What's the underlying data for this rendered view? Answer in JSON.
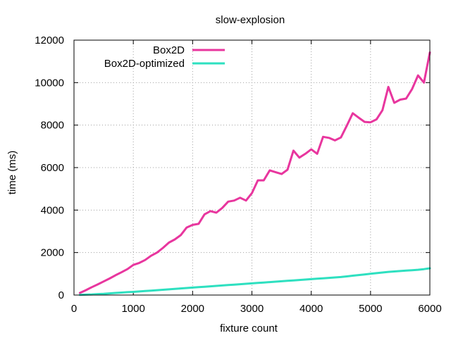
{
  "chart_data": {
    "type": "line",
    "title": "slow-explosion",
    "xlabel": "fixture count",
    "ylabel": "time (ms)",
    "xlim": [
      0,
      6000
    ],
    "ylim": [
      0,
      12000
    ],
    "xticks": [
      0,
      1000,
      2000,
      3000,
      4000,
      5000,
      6000
    ],
    "yticks": [
      0,
      2000,
      4000,
      6000,
      8000,
      10000,
      12000
    ],
    "grid": true,
    "legend_position": "top-left",
    "series": [
      {
        "name": "Box2D",
        "color": "#e8369e",
        "x": [
          100,
          200,
          300,
          400,
          500,
          600,
          700,
          800,
          900,
          1000,
          1100,
          1200,
          1300,
          1400,
          1500,
          1600,
          1700,
          1800,
          1900,
          2000,
          2100,
          2200,
          2300,
          2400,
          2500,
          2600,
          2700,
          2800,
          2900,
          3000,
          3100,
          3200,
          3300,
          3400,
          3500,
          3600,
          3700,
          3800,
          3900,
          4000,
          4100,
          4200,
          4300,
          4400,
          4500,
          4600,
          4700,
          4800,
          4900,
          5000,
          5100,
          5200,
          5300,
          5400,
          5500,
          5600,
          5700,
          5800,
          5900,
          6000
        ],
        "values": [
          100,
          230,
          370,
          500,
          640,
          780,
          930,
          1070,
          1220,
          1420,
          1510,
          1650,
          1850,
          2000,
          2220,
          2470,
          2620,
          2820,
          3180,
          3300,
          3350,
          3800,
          3950,
          3880,
          4100,
          4400,
          4450,
          4580,
          4450,
          4800,
          5400,
          5400,
          5870,
          5780,
          5700,
          5900,
          6800,
          6470,
          6650,
          6860,
          6650,
          7450,
          7400,
          7280,
          7420,
          7980,
          8560,
          8350,
          8150,
          8130,
          8270,
          8700,
          9800,
          9050,
          9200,
          9250,
          9700,
          10340,
          10000,
          11420
        ]
      },
      {
        "name": "Box2D-optimized",
        "color": "#2ee0c0",
        "x": [
          100,
          200,
          300,
          400,
          500,
          600,
          700,
          800,
          900,
          1000,
          1100,
          1200,
          1300,
          1400,
          1500,
          1600,
          1700,
          1800,
          1900,
          2000,
          2100,
          2200,
          2300,
          2400,
          2500,
          2600,
          2700,
          2800,
          2900,
          3000,
          3100,
          3200,
          3300,
          3400,
          3500,
          3600,
          3700,
          3800,
          3900,
          4000,
          4100,
          4200,
          4300,
          4400,
          4500,
          4600,
          4700,
          4800,
          4900,
          5000,
          5100,
          5200,
          5300,
          5400,
          5500,
          5600,
          5700,
          5800,
          5900,
          6000
        ],
        "values": [
          10,
          20,
          30,
          45,
          60,
          80,
          100,
          115,
          135,
          150,
          170,
          190,
          210,
          230,
          250,
          270,
          290,
          310,
          330,
          350,
          370,
          390,
          410,
          430,
          450,
          470,
          490,
          510,
          530,
          550,
          570,
          590,
          610,
          630,
          650,
          670,
          690,
          710,
          730,
          750,
          770,
          790,
          810,
          830,
          850,
          880,
          910,
          940,
          970,
          1000,
          1030,
          1060,
          1090,
          1110,
          1130,
          1150,
          1170,
          1190,
          1220,
          1260
        ]
      }
    ]
  }
}
